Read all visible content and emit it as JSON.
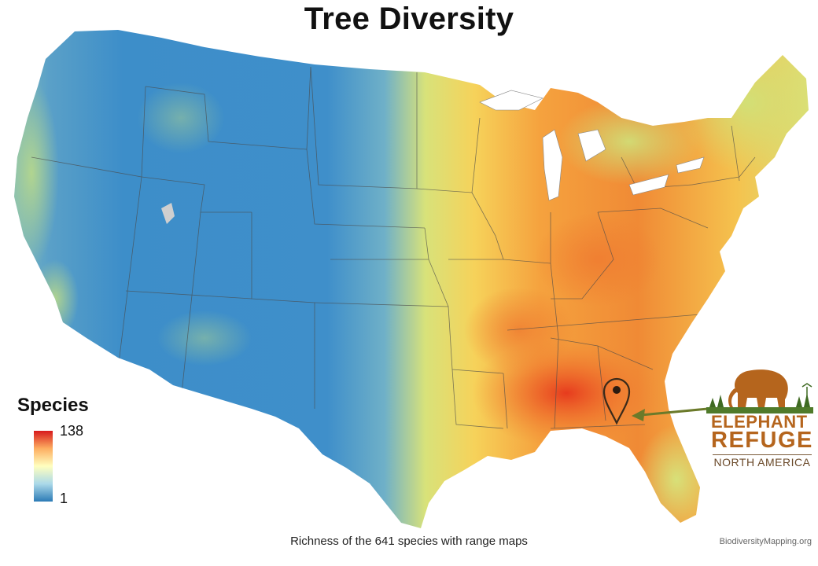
{
  "map": {
    "title": "Tree Diversity",
    "caption": "Richness of the 641 species with range maps",
    "credit": "BiodiversityMapping.org",
    "legend": {
      "title": "Species",
      "max_label": "138",
      "min_label": "1",
      "colors": [
        "#d7191c",
        "#fdae61",
        "#ffffbf",
        "#abd9e9",
        "#2c7bb6"
      ]
    },
    "marker": {
      "icon": "map-pin-icon",
      "color": "#3a2a1a"
    },
    "arrow_color": "#6b7a2a"
  },
  "logo": {
    "line1": "ELEPHANT",
    "line2": "REFUGE",
    "line3": "NORTH AMERICA",
    "color": "#b5651d"
  }
}
